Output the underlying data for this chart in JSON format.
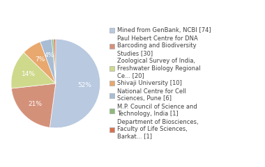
{
  "labels": [
    "Mined from GenBank, NCBI [74]",
    "Paul Hebert Centre for DNA\nBarcoding and Biodiversity\nStudies [30]",
    "Zoological Survey of India,\nFreshwater Biology Regional\nCe... [20]",
    "Shivaji University [10]",
    "National Centre for Cell\nSciences, Pune [6]",
    "M.P. Council of Science and\nTechnology, India [1]",
    "Department of Biosciences,\nFaculty of Life Sciences,\nBarkat... [1]"
  ],
  "values": [
    74,
    30,
    20,
    10,
    6,
    1,
    1
  ],
  "colors": [
    "#b8c9e0",
    "#d4917a",
    "#cfd98c",
    "#e8a86e",
    "#a8bcd4",
    "#8db87a",
    "#d4714e"
  ],
  "startangle": 90,
  "background_color": "#ffffff",
  "text_color": "#404040",
  "fontsize": 6.0
}
